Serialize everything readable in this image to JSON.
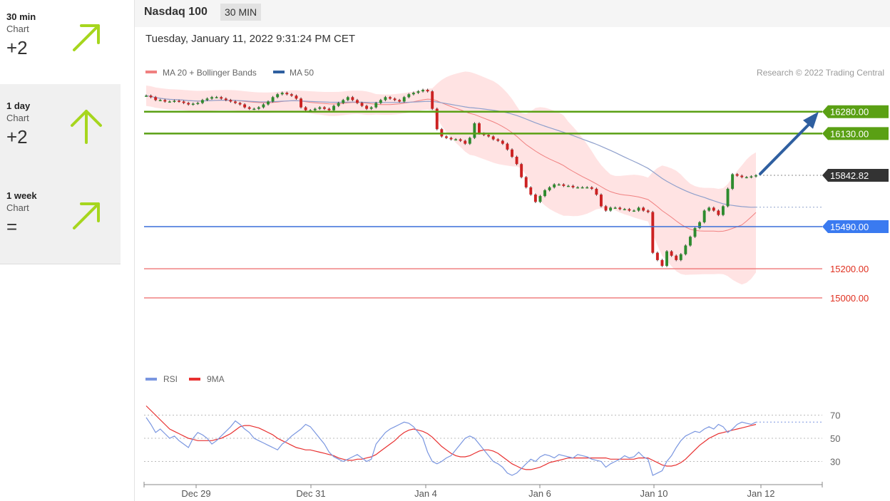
{
  "sidebar": {
    "items": [
      {
        "timeframe": "30 min",
        "sub": "Chart",
        "score": "+2",
        "direction": "up-right",
        "color": "#a6d61e"
      },
      {
        "timeframe": "1 day",
        "sub": "Chart",
        "score": "+2",
        "direction": "up",
        "color": "#a6d61e"
      },
      {
        "timeframe": "1 week",
        "sub": "Chart",
        "score": "=",
        "direction": "up-right",
        "color": "#a6d61e"
      }
    ]
  },
  "header": {
    "title": "Nasdaq 100",
    "interval": "30 MIN"
  },
  "timestamp": "Tuesday, January 11, 2022 9:31:24 PM CET",
  "legend": {
    "ma20": "MA 20 + Bollinger Bands",
    "ma50": "MA 50",
    "credit": "Research © 2022 Trading Central"
  },
  "rsi_legend": {
    "rsi": "RSI",
    "ma": "9MA"
  },
  "colors": {
    "up": "#2e8b2e",
    "down": "#cc2222",
    "support": "#5aa014",
    "resistance": "#f08080",
    "pivot": "#3a6fd8",
    "last": "#333333",
    "target": "#2f5fa0",
    "band": "#ffdada",
    "ma20": "#f08080",
    "ma50": "#8fa0cc",
    "rsi": "#7a96e0",
    "rsi_ma": "#e83030"
  },
  "chart_data": [
    {
      "type": "line",
      "name": "Nasdaq 100",
      "x_ticks": [
        "Dec 29",
        "Dec 31",
        "Jan 4",
        "Jan 6",
        "Jan 10",
        "Jan 12"
      ],
      "ylim": [
        14500,
        16460
      ],
      "closes": [
        16390,
        16380,
        16360,
        16360,
        16350,
        16350,
        16355,
        16350,
        16340,
        16330,
        16335,
        16340,
        16360,
        16370,
        16380,
        16380,
        16370,
        16360,
        16350,
        16340,
        16330,
        16310,
        16300,
        16300,
        16310,
        16330,
        16350,
        16380,
        16400,
        16410,
        16400,
        16390,
        16370,
        16310,
        16290,
        16290,
        16300,
        16310,
        16300,
        16290,
        16320,
        16340,
        16360,
        16380,
        16360,
        16340,
        16320,
        16300,
        16310,
        16340,
        16360,
        16380,
        16370,
        16360,
        16350,
        16380,
        16400,
        16410,
        16420,
        16430,
        16420,
        16300,
        16160,
        16110,
        16100,
        16090,
        16090,
        16080,
        16060,
        16100,
        16200,
        16130,
        16120,
        16110,
        16090,
        16080,
        16060,
        16020,
        15970,
        15920,
        15830,
        15760,
        15710,
        15660,
        15700,
        15740,
        15760,
        15780,
        15780,
        15770,
        15770,
        15760,
        15760,
        15760,
        15760,
        15750,
        15710,
        15630,
        15600,
        15620,
        15620,
        15610,
        15610,
        15600,
        15600,
        15620,
        15600,
        15590,
        15310,
        15260,
        15220,
        15320,
        15290,
        15260,
        15300,
        15360,
        15420,
        15480,
        15520,
        15600,
        15620,
        15600,
        15570,
        15630,
        15750,
        15850,
        15840,
        15830,
        15830,
        15835,
        15842.82
      ],
      "levels": [
        {
          "value": 16280.0,
          "label": "16280.00",
          "kind": "resistance-target"
        },
        {
          "value": 16130.0,
          "label": "16130.00",
          "kind": "resistance-target"
        },
        {
          "value": 15842.82,
          "label": "15842.82",
          "kind": "last"
        },
        {
          "value": 15490.0,
          "label": "15490.00",
          "kind": "pivot"
        },
        {
          "value": 15200.0,
          "label": "15200.00",
          "kind": "support"
        },
        {
          "value": 15000.0,
          "label": "15000.00",
          "kind": "support"
        }
      ],
      "series": [
        {
          "name": "MA 20 + Bollinger Bands"
        },
        {
          "name": "MA 50"
        }
      ]
    },
    {
      "type": "line",
      "name": "RSI",
      "ylim": [
        10,
        90
      ],
      "y_ticks": [
        70,
        50,
        30
      ],
      "rsi": [
        68,
        62,
        55,
        58,
        54,
        50,
        52,
        48,
        45,
        42,
        50,
        55,
        53,
        50,
        45,
        48,
        52,
        56,
        60,
        65,
        62,
        58,
        55,
        50,
        48,
        46,
        44,
        42,
        40,
        45,
        48,
        52,
        55,
        58,
        62,
        60,
        55,
        50,
        45,
        38,
        34,
        32,
        30,
        32,
        34,
        36,
        33,
        30,
        32,
        45,
        50,
        55,
        58,
        60,
        62,
        64,
        63,
        60,
        55,
        50,
        38,
        30,
        28,
        30,
        33,
        35,
        40,
        45,
        50,
        52,
        50,
        45,
        40,
        35,
        30,
        28,
        25,
        20,
        18,
        20,
        24,
        28,
        32,
        30,
        34,
        36,
        35,
        33,
        36,
        35,
        34,
        33,
        36,
        35,
        34,
        32,
        31,
        30,
        25,
        28,
        30,
        32,
        35,
        33,
        34,
        38,
        34,
        32,
        18,
        20,
        22,
        30,
        35,
        42,
        48,
        52,
        54,
        56,
        55,
        58,
        60,
        58,
        62,
        60,
        55,
        58,
        62,
        64,
        63,
        62,
        64
      ],
      "rsi_ma": [
        78,
        74,
        70,
        66,
        62,
        58,
        56,
        54,
        52,
        50,
        49,
        48,
        48,
        48,
        48,
        49,
        50,
        52,
        54,
        57,
        60,
        61,
        61,
        60,
        59,
        57,
        55,
        53,
        50,
        48,
        46,
        44,
        42,
        41,
        40,
        40,
        39,
        38,
        37,
        36,
        35,
        33,
        32,
        31,
        31,
        32,
        32,
        33,
        34,
        36,
        39,
        42,
        45,
        48,
        52,
        55,
        57,
        58,
        57,
        56,
        54,
        51,
        47,
        43,
        40,
        37,
        35,
        34,
        34,
        35,
        37,
        39,
        40,
        40,
        39,
        37,
        34,
        31,
        28,
        26,
        24,
        23,
        23,
        24,
        25,
        27,
        29,
        30,
        31,
        32,
        33,
        33,
        33,
        33,
        33,
        33,
        33,
        33,
        33,
        32,
        32,
        32,
        32,
        32,
        32,
        33,
        33,
        33,
        31,
        29,
        27,
        26,
        26,
        27,
        29,
        32,
        36,
        40,
        44,
        47,
        50,
        52,
        54,
        55,
        56,
        57,
        58,
        59,
        60,
        61,
        62
      ]
    }
  ]
}
